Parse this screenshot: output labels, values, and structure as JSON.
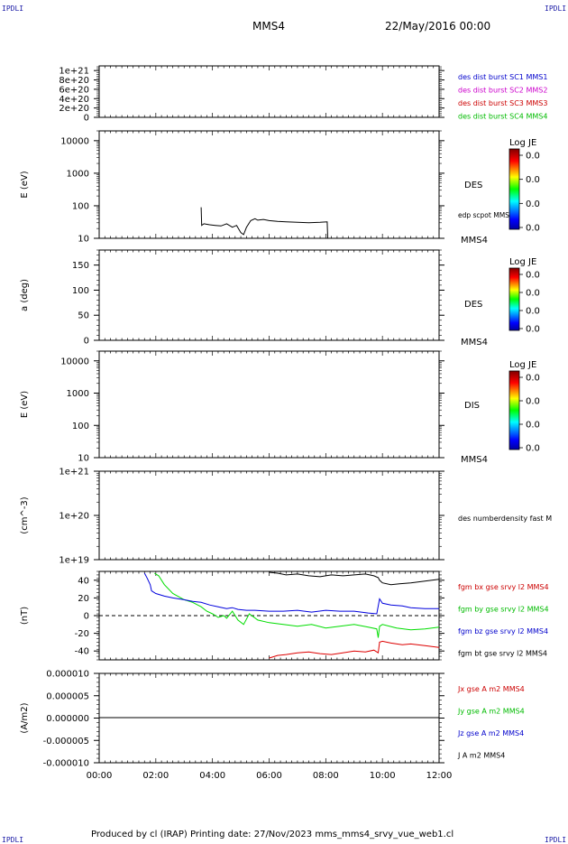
{
  "header": {
    "spacecraft": "MMS4",
    "date": "22/May/2016 00:00",
    "corner_left": "IPDLI",
    "corner_right": "IPDLI",
    "corner_bottom_left": "IPDLI",
    "corner_bottom_right": "IPDLI"
  },
  "footer": {
    "text": "Produced by cl (IRAP)   Printing date: 27/Nov/2023   mms_mms4_srvy_vue_web1.cl"
  },
  "colorbar": {
    "title": "Log JE",
    "ticks": [
      "0.0",
      "0.0",
      "0.0",
      "0.0"
    ]
  },
  "chart_data": [
    {
      "type": "line",
      "id": "panel-dist-burst",
      "ylabel": "",
      "y_ticks": [
        "1e+21",
        "8e+20",
        "6e+20",
        "4e+20",
        "2e+20",
        "0"
      ],
      "ylim": [
        0,
        1.1e+21
      ],
      "dashed_zero": true,
      "legend": [
        {
          "text": "des dist burst SC1 MMS1",
          "color": "#0000cc"
        },
        {
          "text": "des dist burst SC2 MMS2",
          "color": "#cc00cc"
        },
        {
          "text": "des dist burst SC3 MMS3",
          "color": "#cc0000"
        },
        {
          "text": "des dist burst SC4 MMS4",
          "color": "#00bb00"
        }
      ]
    },
    {
      "type": "line",
      "id": "panel-des-energy",
      "ylabel": "E (eV)",
      "scale": "log",
      "ylim": [
        10,
        20000
      ],
      "y_ticks": [
        "10000",
        "1000",
        "100",
        "10"
      ],
      "side_label": "DES",
      "sub_label": "edp scpot MMS4",
      "bottom_label": "MMS4",
      "series": [
        {
          "name": "edp scpot MMS4",
          "color": "#000000",
          "x_hours": [
            3.6,
            3.62,
            3.7,
            3.9,
            4.1,
            4.3,
            4.5,
            4.7,
            4.85,
            5.0,
            5.1,
            5.2,
            5.35,
            5.5,
            5.6,
            5.8,
            6.0,
            6.3,
            6.6,
            7.0,
            7.4,
            7.8,
            8.05,
            8.07
          ],
          "values": [
            90,
            25,
            28,
            26,
            25,
            24,
            28,
            22,
            25,
            15,
            13,
            22,
            35,
            40,
            36,
            38,
            35,
            33,
            32,
            31,
            30,
            31,
            32,
            10
          ]
        }
      ]
    },
    {
      "type": "heatmap",
      "id": "panel-des-pitch",
      "ylabel": "a (deg)",
      "ylim": [
        0,
        180
      ],
      "y_ticks": [
        "150",
        "100",
        "50",
        "0"
      ],
      "side_label": "DES",
      "bottom_label": "MMS4"
    },
    {
      "type": "heatmap",
      "id": "panel-dis-energy",
      "ylabel": "E (eV)",
      "scale": "log",
      "ylim": [
        10,
        20000
      ],
      "y_ticks": [
        "10000",
        "1000",
        "100",
        "10"
      ],
      "side_label": "DIS",
      "bottom_label": "MMS4"
    },
    {
      "type": "line",
      "id": "panel-density",
      "ylabel": "(cm^-3)",
      "scale": "log",
      "ylim": [
        1e+19,
        1e+21
      ],
      "y_ticks": [
        "1e+21",
        "1e+20",
        "1e+19"
      ],
      "side_label": "des numberdensity fast M"
    },
    {
      "type": "line",
      "id": "panel-fgm",
      "ylabel": "(nT)",
      "ylim": [
        -50,
        50
      ],
      "y_ticks": [
        "40",
        "20",
        "0",
        "-20",
        "-40"
      ],
      "dashed_zero": true,
      "legend": [
        {
          "text": "fgm bx gse srvy l2 MMS4",
          "color": "#cc0000"
        },
        {
          "text": "fgm by gse srvy l2 MMS4",
          "color": "#00bb00"
        },
        {
          "text": "fgm bz gse srvy l2 MMS4",
          "color": "#0000cc"
        },
        {
          "text": "fgm bt gse srvy l2 MMS4",
          "color": "#000000"
        }
      ],
      "series": [
        {
          "name": "fgm bx gse srvy l2 MMS4",
          "color": "#dd0000",
          "x_hours": [
            6.0,
            6.3,
            6.6,
            7.0,
            7.4,
            7.8,
            8.2,
            8.6,
            9.0,
            9.4,
            9.7,
            9.85,
            9.9,
            10.0,
            10.3,
            10.7,
            11.0,
            11.5,
            12.0
          ],
          "values": [
            -48,
            -45,
            -44,
            -42,
            -41,
            -43,
            -44,
            -42,
            -40,
            -41,
            -39,
            -42,
            -30,
            -29,
            -31,
            -33,
            -32,
            -34,
            -36
          ]
        },
        {
          "name": "fgm by gse srvy l2 MMS4",
          "color": "#00dd00",
          "x_hours": [
            1.95,
            2.1,
            2.3,
            2.6,
            3.0,
            3.3,
            3.6,
            3.8,
            4.0,
            4.2,
            4.4,
            4.5,
            4.7,
            4.9,
            5.1,
            5.3,
            5.6,
            6.0,
            6.5,
            7.0,
            7.5,
            8.0,
            8.5,
            9.0,
            9.5,
            9.8,
            9.85,
            9.9,
            10.0,
            10.5,
            11.0,
            11.5,
            12.0
          ],
          "values": [
            48,
            45,
            35,
            25,
            18,
            15,
            10,
            5,
            2,
            -2,
            0,
            -3,
            5,
            -5,
            -10,
            2,
            -5,
            -8,
            -10,
            -12,
            -10,
            -14,
            -12,
            -10,
            -13,
            -15,
            -25,
            -12,
            -10,
            -14,
            -16,
            -15,
            -13
          ]
        },
        {
          "name": "fgm bz gse srvy l2 MMS4",
          "color": "#0000dd",
          "x_hours": [
            1.6,
            1.7,
            1.8,
            1.85,
            2.0,
            2.3,
            2.6,
            3.0,
            3.3,
            3.6,
            3.9,
            4.2,
            4.5,
            4.7,
            4.9,
            5.2,
            5.5,
            6.0,
            6.5,
            7.0,
            7.5,
            8.0,
            8.5,
            9.0,
            9.5,
            9.8,
            9.9,
            10.0,
            10.3,
            10.7,
            11.0,
            11.5,
            12.0
          ],
          "values": [
            48,
            42,
            35,
            28,
            25,
            22,
            20,
            18,
            16,
            15,
            12,
            10,
            8,
            9,
            7,
            6,
            6,
            5,
            5,
            6,
            4,
            6,
            5,
            5,
            3,
            2,
            19,
            14,
            12,
            11,
            9,
            8,
            8
          ]
        },
        {
          "name": "fgm bt gse srvy l2 MMS4",
          "color": "#000000",
          "x_hours": [
            6.0,
            6.3,
            6.6,
            7.0,
            7.4,
            7.8,
            8.2,
            8.6,
            9.0,
            9.4,
            9.7,
            9.85,
            9.9,
            10.0,
            10.3,
            10.6,
            11.0,
            11.5,
            12.0
          ],
          "values": [
            49,
            48,
            46,
            47,
            45,
            44,
            46,
            45,
            46,
            47,
            45,
            43,
            40,
            37,
            35,
            36,
            37,
            39,
            41
          ]
        }
      ]
    },
    {
      "type": "line",
      "id": "panel-current",
      "ylabel": "(A/m2)",
      "ylim": [
        -1e-05,
        1e-05
      ],
      "y_ticks": [
        "0.000010",
        "0.000005",
        "0.000000",
        "-0.000005",
        "-0.000010"
      ],
      "legend": [
        {
          "text": "Jx gse A m2 MMS4",
          "color": "#cc0000"
        },
        {
          "text": "Jy gse A m2 MMS4",
          "color": "#00bb00"
        },
        {
          "text": "Jz gse A m2 MMS4",
          "color": "#0000cc"
        },
        {
          "text": "J A m2 MMS4",
          "color": "#000000"
        }
      ],
      "series": [
        {
          "name": "J A m2 MMS4",
          "color": "#000000",
          "x_hours": [
            0,
            2,
            4,
            6,
            8,
            10,
            12
          ],
          "values": [
            1e-07,
            1e-07,
            1e-07,
            1e-07,
            1e-07,
            1e-07,
            1e-07
          ]
        }
      ],
      "x_ticks": [
        "00:00",
        "02:00",
        "04:00",
        "06:00",
        "08:00",
        "10:00",
        "12:00"
      ],
      "xlim": [
        0,
        12
      ]
    }
  ]
}
